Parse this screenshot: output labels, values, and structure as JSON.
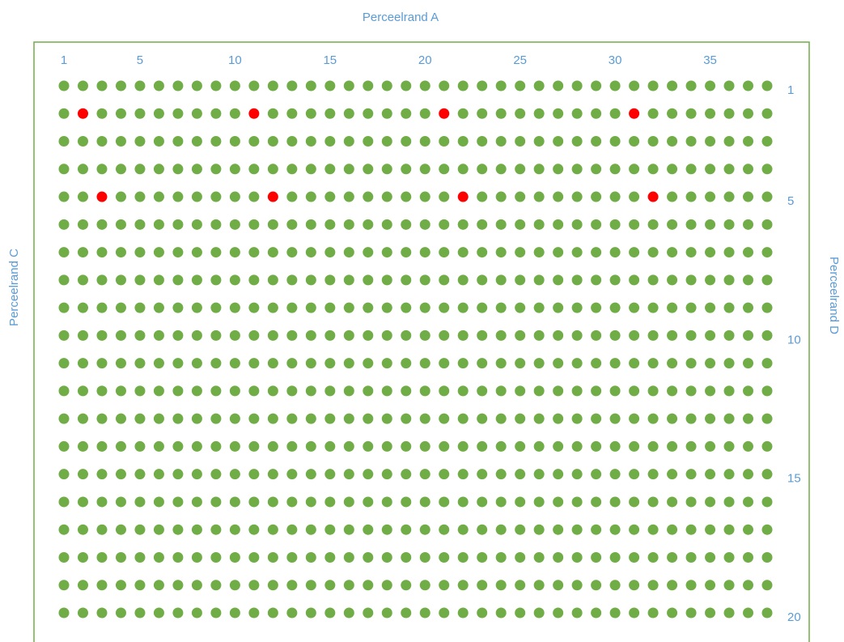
{
  "title_top": "Perceelrand A",
  "title_left": "Perceelrand C",
  "title_right": "Perceelrand D",
  "grid": {
    "columns": 38,
    "rows": 20,
    "dot_color": "#70ad47",
    "marked_color": "#ff0000"
  },
  "column_labels": [
    1,
    5,
    10,
    15,
    20,
    25,
    30,
    35
  ],
  "row_labels": [
    1,
    5,
    10,
    15,
    20
  ],
  "marked": [
    {
      "row": 2,
      "col": 2
    },
    {
      "row": 2,
      "col": 11
    },
    {
      "row": 2,
      "col": 21
    },
    {
      "row": 2,
      "col": 31
    },
    {
      "row": 5,
      "col": 3
    },
    {
      "row": 5,
      "col": 12
    },
    {
      "row": 5,
      "col": 22
    },
    {
      "row": 5,
      "col": 32
    }
  ]
}
